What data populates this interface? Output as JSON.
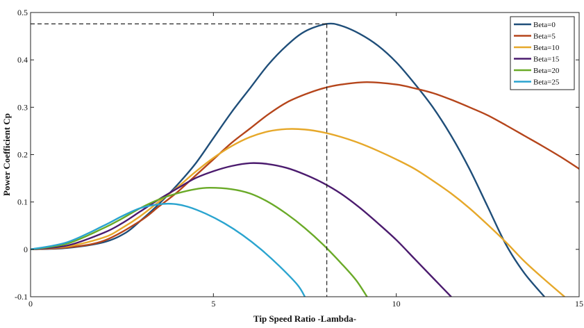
{
  "chart_data": {
    "type": "line",
    "xlabel": "Tip Speed Ratio -Lambda-",
    "ylabel": "Power Coefficient Cp",
    "xlim": [
      0,
      15
    ],
    "ylim": [
      -0.1,
      0.5
    ],
    "xticks": [
      0,
      5,
      10,
      15
    ],
    "yticks": [
      -0.1,
      0,
      0.1,
      0.2,
      0.3,
      0.4,
      0.5
    ],
    "grid": false,
    "legend_position": "top-right",
    "annotation": {
      "x": 8.1,
      "y": 0.476,
      "style": "dashed"
    },
    "series": [
      {
        "name": "Beta=0",
        "color": "#1f4e79",
        "points": [
          [
            0,
            0
          ],
          [
            1,
            0.003
          ],
          [
            2,
            0.015
          ],
          [
            2.6,
            0.035
          ],
          [
            3,
            0.06
          ],
          [
            3.5,
            0.095
          ],
          [
            4,
            0.135
          ],
          [
            4.5,
            0.18
          ],
          [
            5,
            0.235
          ],
          [
            5.5,
            0.29
          ],
          [
            6,
            0.34
          ],
          [
            6.5,
            0.39
          ],
          [
            7,
            0.43
          ],
          [
            7.5,
            0.46
          ],
          [
            8.1,
            0.476
          ],
          [
            8.5,
            0.472
          ],
          [
            9,
            0.455
          ],
          [
            9.5,
            0.43
          ],
          [
            10,
            0.395
          ],
          [
            10.5,
            0.35
          ],
          [
            11,
            0.3
          ],
          [
            11.5,
            0.24
          ],
          [
            12,
            0.17
          ],
          [
            12.5,
            0.09
          ],
          [
            13,
            0.01
          ],
          [
            13.5,
            -0.05
          ],
          [
            14.05,
            -0.1
          ]
        ]
      },
      {
        "name": "Beta=5",
        "color": "#b5451b",
        "points": [
          [
            0,
            0
          ],
          [
            1,
            0.004
          ],
          [
            2,
            0.018
          ],
          [
            3,
            0.06
          ],
          [
            3.5,
            0.09
          ],
          [
            4,
            0.12
          ],
          [
            4.5,
            0.155
          ],
          [
            5,
            0.19
          ],
          [
            5.5,
            0.225
          ],
          [
            6,
            0.255
          ],
          [
            6.5,
            0.285
          ],
          [
            7,
            0.31
          ],
          [
            7.5,
            0.327
          ],
          [
            8,
            0.34
          ],
          [
            8.5,
            0.348
          ],
          [
            9.2,
            0.353
          ],
          [
            10,
            0.348
          ],
          [
            10.5,
            0.34
          ],
          [
            11,
            0.33
          ],
          [
            11.5,
            0.316
          ],
          [
            12,
            0.3
          ],
          [
            12.5,
            0.283
          ],
          [
            13,
            0.262
          ],
          [
            13.5,
            0.24
          ],
          [
            14,
            0.218
          ],
          [
            14.5,
            0.195
          ],
          [
            15,
            0.17
          ]
        ]
      },
      {
        "name": "Beta=10",
        "color": "#e6a82a",
        "points": [
          [
            0,
            0
          ],
          [
            1,
            0.006
          ],
          [
            2,
            0.025
          ],
          [
            2.5,
            0.045
          ],
          [
            3,
            0.07
          ],
          [
            3.5,
            0.1
          ],
          [
            4,
            0.13
          ],
          [
            4.5,
            0.163
          ],
          [
            5,
            0.193
          ],
          [
            5.5,
            0.218
          ],
          [
            6,
            0.237
          ],
          [
            6.5,
            0.249
          ],
          [
            7,
            0.254
          ],
          [
            7.5,
            0.253
          ],
          [
            8,
            0.247
          ],
          [
            8.5,
            0.237
          ],
          [
            9,
            0.224
          ],
          [
            9.5,
            0.208
          ],
          [
            10,
            0.19
          ],
          [
            10.5,
            0.17
          ],
          [
            11,
            0.145
          ],
          [
            11.5,
            0.118
          ],
          [
            12,
            0.087
          ],
          [
            12.5,
            0.052
          ],
          [
            13,
            0.015
          ],
          [
            13.5,
            -0.025
          ],
          [
            14,
            -0.06
          ],
          [
            14.6,
            -0.1
          ]
        ]
      },
      {
        "name": "Beta=15",
        "color": "#4b1b6e",
        "points": [
          [
            0,
            0
          ],
          [
            1,
            0.008
          ],
          [
            2,
            0.035
          ],
          [
            2.5,
            0.055
          ],
          [
            3,
            0.08
          ],
          [
            3.5,
            0.105
          ],
          [
            4,
            0.128
          ],
          [
            4.5,
            0.15
          ],
          [
            5,
            0.165
          ],
          [
            5.5,
            0.176
          ],
          [
            6,
            0.182
          ],
          [
            6.5,
            0.18
          ],
          [
            7,
            0.172
          ],
          [
            7.5,
            0.158
          ],
          [
            8,
            0.14
          ],
          [
            8.5,
            0.117
          ],
          [
            9,
            0.088
          ],
          [
            9.5,
            0.055
          ],
          [
            10,
            0.02
          ],
          [
            10.5,
            -0.02
          ],
          [
            11,
            -0.06
          ],
          [
            11.5,
            -0.1
          ]
        ]
      },
      {
        "name": "Beta=20",
        "color": "#6aaa28",
        "points": [
          [
            0,
            0
          ],
          [
            1,
            0.012
          ],
          [
            2,
            0.045
          ],
          [
            2.5,
            0.065
          ],
          [
            3,
            0.087
          ],
          [
            3.5,
            0.105
          ],
          [
            4,
            0.118
          ],
          [
            4.5,
            0.127
          ],
          [
            4.9,
            0.13
          ],
          [
            5.5,
            0.127
          ],
          [
            6,
            0.118
          ],
          [
            6.5,
            0.1
          ],
          [
            7,
            0.075
          ],
          [
            7.5,
            0.045
          ],
          [
            8,
            0.01
          ],
          [
            8.5,
            -0.03
          ],
          [
            8.9,
            -0.065
          ],
          [
            9.2,
            -0.1
          ]
        ]
      },
      {
        "name": "Beta=25",
        "color": "#2aa4cf",
        "points": [
          [
            0,
            0
          ],
          [
            1,
            0.015
          ],
          [
            2,
            0.05
          ],
          [
            2.5,
            0.07
          ],
          [
            3,
            0.087
          ],
          [
            3.5,
            0.095
          ],
          [
            3.9,
            0.096
          ],
          [
            4.3,
            0.09
          ],
          [
            4.8,
            0.075
          ],
          [
            5.3,
            0.055
          ],
          [
            5.8,
            0.03
          ],
          [
            6.3,
            0.0
          ],
          [
            6.8,
            -0.035
          ],
          [
            7.3,
            -0.075
          ],
          [
            7.5,
            -0.1
          ]
        ]
      }
    ]
  }
}
